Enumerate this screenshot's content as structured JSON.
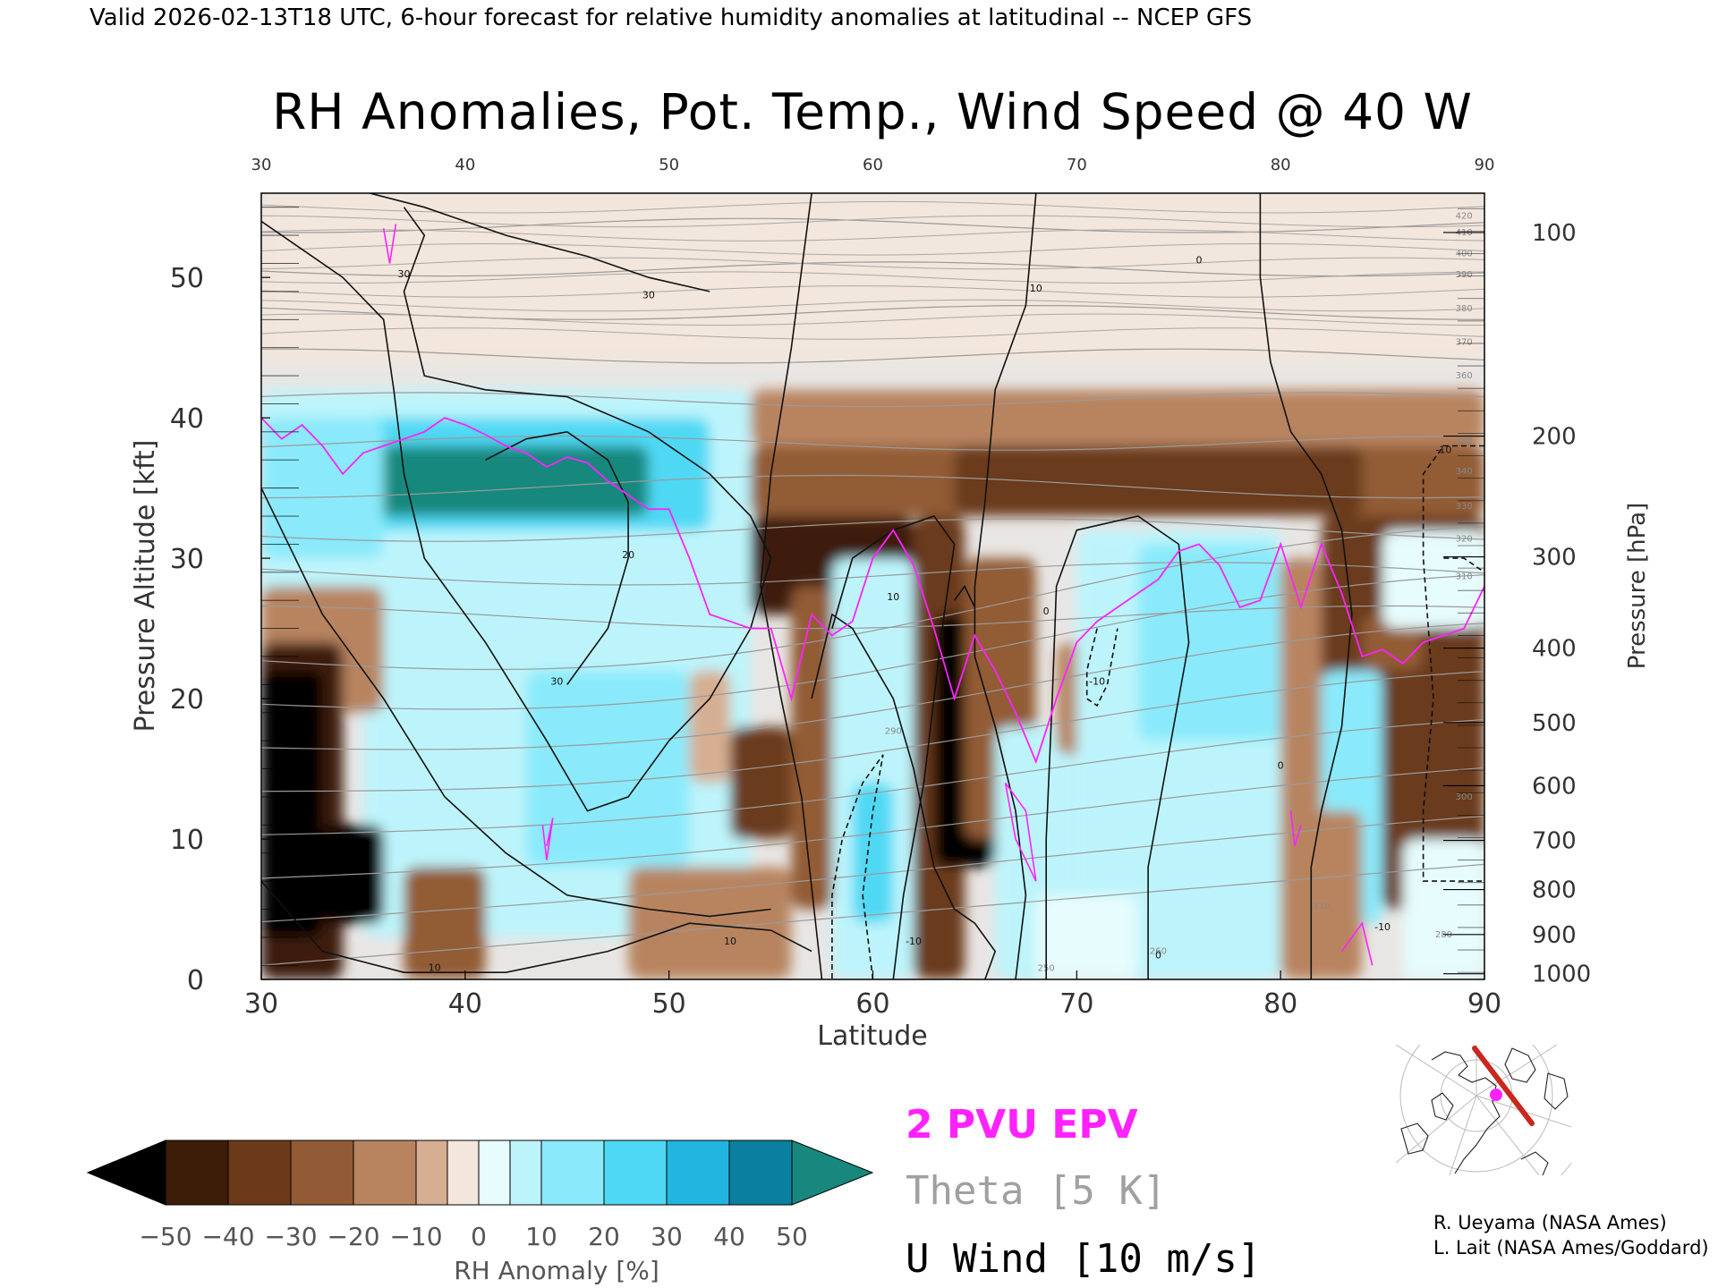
{
  "header": {
    "valid_line": "Valid 2026-02-13T18 UTC, 6-hour forecast for relative humidity anomalies at latitudinal -- NCEP GFS"
  },
  "chart_data": {
    "type": "heatmap",
    "title": "RH Anomalies, Pot. Temp., Wind Speed @ 40 W",
    "xlabel": "Latitude",
    "ylabel": "Pressure Altitude [kft]",
    "ylabel_right": "Pressure [hPa]",
    "xlim": [
      30,
      90
    ],
    "ylim": [
      0,
      56
    ],
    "x_ticks": [
      30,
      40,
      50,
      60,
      70,
      80,
      90
    ],
    "x_ticks_top": [
      30,
      40,
      50,
      60,
      70,
      80,
      90
    ],
    "y_ticks": [
      0,
      10,
      20,
      30,
      40,
      50
    ],
    "pressure_ticks": [
      {
        "label": "100",
        "kft": 53.2
      },
      {
        "label": "200",
        "kft": 38.7
      },
      {
        "label": "300",
        "kft": 30.1
      },
      {
        "label": "400",
        "kft": 23.6
      },
      {
        "label": "500",
        "kft": 18.3
      },
      {
        "label": "600",
        "kft": 13.8
      },
      {
        "label": "700",
        "kft": 9.9
      },
      {
        "label": "800",
        "kft": 6.4
      },
      {
        "label": "900",
        "kft": 3.2
      },
      {
        "label": "1000",
        "kft": 0.4
      }
    ],
    "colorbar": {
      "label": "RH Anomaly [%]",
      "ticks": [
        -50,
        -40,
        -30,
        -20,
        -10,
        0,
        10,
        20,
        30,
        40,
        50
      ],
      "colors": [
        "#000000",
        "#3d1c08",
        "#6b3a1a",
        "#925b35",
        "#b88460",
        "#d6ae92",
        "#f3e6dc",
        "#e6fcfd",
        "#bdf4fb",
        "#8aeafb",
        "#4fd8f4",
        "#21b5e0",
        "#0b7f9f",
        "#18887e"
      ]
    },
    "legend": [
      {
        "name": "2 PVU EPV",
        "color": "#ff22ff"
      },
      {
        "name": "Theta [5 K]",
        "color": "#a0a0a0"
      },
      {
        "name": "U Wind [10 m/s]",
        "color": "#000000"
      }
    ],
    "theta_contour_labels": [
      "420",
      "410",
      "400",
      "390",
      "380",
      "370",
      "360",
      "350",
      "340",
      "330",
      "320",
      "310",
      "300",
      "290",
      "280",
      "270",
      "260",
      "250"
    ],
    "wind_contour_labels": [
      "30",
      "30",
      "30",
      "20",
      "10",
      "10",
      "10",
      "10",
      "0",
      "0",
      "0",
      "0",
      "-10",
      "-10",
      "-10",
      "-10"
    ],
    "pvu_line": {
      "x": [
        30,
        31,
        32,
        33,
        34,
        35,
        36,
        37,
        38,
        39,
        40,
        41,
        42,
        43,
        44,
        45,
        46,
        47,
        48,
        49,
        50,
        51,
        52,
        53,
        54,
        55,
        56,
        57,
        58,
        59,
        60,
        61,
        62,
        63,
        64,
        65,
        66,
        67,
        68,
        69,
        70,
        71,
        72,
        73,
        74,
        75,
        76,
        77,
        78,
        79,
        80,
        81,
        82,
        83,
        84,
        85,
        86,
        87,
        88,
        89,
        90
      ],
      "y": [
        40,
        38.5,
        39.5,
        38,
        36,
        37.5,
        38,
        38.5,
        39,
        40,
        39.5,
        38.8,
        38,
        37.5,
        36.5,
        37.2,
        36.8,
        35.5,
        34.5,
        33.5,
        33.5,
        30,
        26,
        25.5,
        25,
        25,
        20,
        26,
        24.5,
        25.5,
        30,
        32,
        29.5,
        25,
        20,
        24.5,
        22,
        19,
        15.5,
        20,
        24,
        25.5,
        26.5,
        27.5,
        28.5,
        30.5,
        31,
        29.5,
        26.5,
        27,
        31,
        26.5,
        31,
        27.5,
        23,
        23.5,
        22.5,
        24,
        24.5,
        25,
        28
      ]
    }
  },
  "credits": {
    "line1": "R. Ueyama (NASA Ames)",
    "line2": "L. Lait (NASA Ames/Goddard)"
  },
  "inset_map": {
    "track_color": "#c8281e",
    "marker_color": "#ff22ff"
  }
}
